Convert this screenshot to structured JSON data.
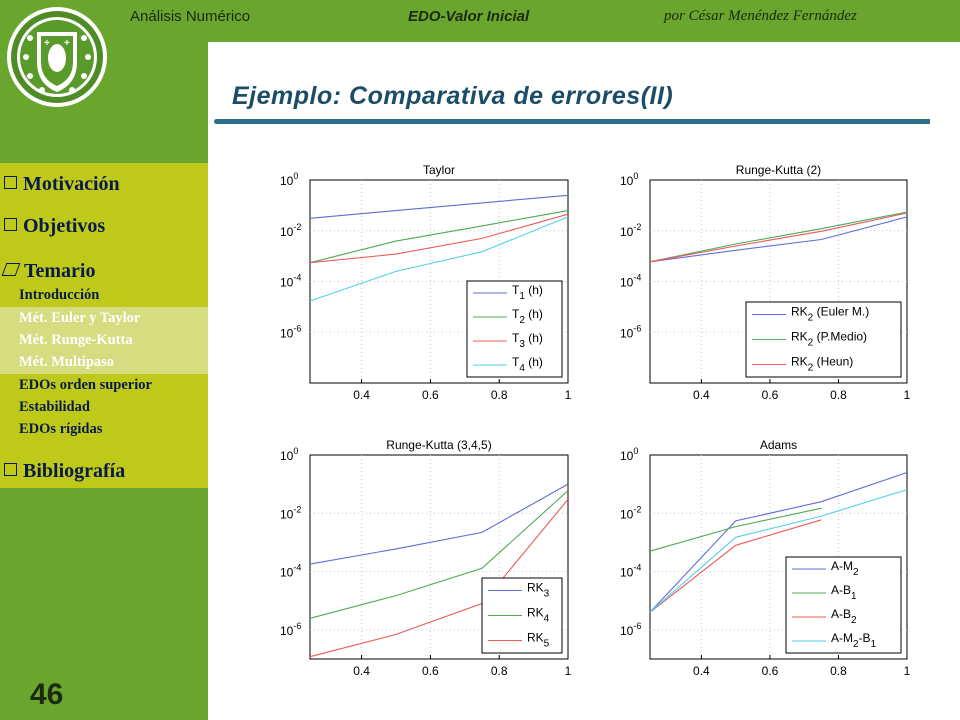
{
  "header": {
    "course": "Análisis Numérico",
    "topic": "EDO-Valor Inicial",
    "author": "por César Menéndez Fernández"
  },
  "slide": {
    "title": "Ejemplo: Comparativa de errores(II)",
    "page_number": "46"
  },
  "menu": {
    "items": [
      {
        "label": "Motivación"
      },
      {
        "label": "Objetivos"
      },
      {
        "label": "Temario"
      },
      {
        "label": "Bibliografía"
      }
    ],
    "subitems": [
      {
        "label": "Introducción",
        "active": false
      },
      {
        "label": "Mét. Euler y Taylor",
        "active": true
      },
      {
        "label": "Mét. Runge-Kutta",
        "active": true
      },
      {
        "label": "Mét. Multipaso",
        "active": true
      },
      {
        "label": "EDOs orden superior",
        "active": false
      },
      {
        "label": "Estabilidad",
        "active": false
      },
      {
        "label": "EDOs rígidas",
        "active": false
      }
    ]
  },
  "colors": {
    "sidebar": "#6aa52d",
    "menu": "#bfc91a",
    "title": "#1b4d66",
    "series_blue": "#5f6ed8",
    "series_green": "#4fa857",
    "series_red": "#ee5a5a",
    "series_cyan": "#52d2e6"
  },
  "chart_data": [
    {
      "type": "line",
      "title": "Taylor",
      "yscale": "log",
      "xlim": [
        0.25,
        1
      ],
      "ylim": [
        1e-08,
        1
      ],
      "xticks": [
        "0.4",
        "0.6",
        "0.8",
        "1"
      ],
      "yticks": [
        {
          "base": "10",
          "exp": "0"
        },
        {
          "base": "10",
          "exp": "-2"
        },
        {
          "base": "10",
          "exp": "-4"
        },
        {
          "base": "10",
          "exp": "-6"
        }
      ],
      "legend_position": "bottom-right",
      "series": [
        {
          "name": "T1 (h)",
          "label": {
            "main": "T",
            "sub": "1",
            "suffix": " (h)"
          },
          "color": "#5f6ed8",
          "x": [
            0.25,
            0.5,
            0.75,
            1
          ],
          "y": [
            0.031,
            0.062,
            0.125,
            0.25
          ]
        },
        {
          "name": "T2 (h)",
          "label": {
            "main": "T",
            "sub": "2",
            "suffix": " (h)"
          },
          "color": "#4fa857",
          "x": [
            0.25,
            0.5,
            0.75,
            1
          ],
          "y": [
            0.00055,
            0.0039,
            0.0155,
            0.062
          ]
        },
        {
          "name": "T3 (h)",
          "label": {
            "main": "T",
            "sub": "3",
            "suffix": " (h)"
          },
          "color": "#ee5a5a",
          "x": [
            0.25,
            0.5,
            0.75,
            1
          ],
          "y": [
            0.00055,
            0.0012,
            0.005,
            0.045
          ]
        },
        {
          "name": "T4 (h)",
          "label": {
            "main": "T",
            "sub": "4",
            "suffix": " (h)"
          },
          "color": "#52d2e6",
          "x": [
            0.25,
            0.5,
            0.75,
            1
          ],
          "y": [
            1.7e-05,
            0.00025,
            0.0015,
            0.035
          ]
        }
      ]
    },
    {
      "type": "line",
      "title": "Runge-Kutta (2)",
      "yscale": "log",
      "xlim": [
        0.25,
        1
      ],
      "ylim": [
        1e-08,
        1
      ],
      "xticks": [
        "0.4",
        "0.6",
        "0.8",
        "1"
      ],
      "yticks": [
        {
          "base": "10",
          "exp": "0"
        },
        {
          "base": "10",
          "exp": "-2"
        },
        {
          "base": "10",
          "exp": "-4"
        },
        {
          "base": "10",
          "exp": "-6"
        }
      ],
      "legend_position": "bottom-right",
      "series": [
        {
          "name": "RK2 (Euler M.)",
          "label": {
            "main": "RK",
            "sub": "2",
            "suffix": " (Euler M.)"
          },
          "color": "#5f6ed8",
          "x": [
            0.25,
            0.5,
            0.75,
            1
          ],
          "y": [
            0.0006,
            0.0017,
            0.0045,
            0.035
          ]
        },
        {
          "name": "RK2 (P.Medio)",
          "label": {
            "main": "RK",
            "sub": "2",
            "suffix": " (P.Medio)"
          },
          "color": "#4fa857",
          "x": [
            0.25,
            0.5,
            0.75,
            1
          ],
          "y": [
            0.0006,
            0.003,
            0.012,
            0.055
          ]
        },
        {
          "name": "RK2 (Heun)",
          "label": {
            "main": "RK",
            "sub": "2",
            "suffix": " (Heun)"
          },
          "color": "#ee5a5a",
          "x": [
            0.25,
            0.5,
            0.75,
            1
          ],
          "y": [
            0.0006,
            0.0025,
            0.0095,
            0.05
          ]
        }
      ]
    },
    {
      "type": "line",
      "title": "Runge-Kutta (3,4,5)",
      "yscale": "log",
      "xlim": [
        0.25,
        1
      ],
      "ylim": [
        1e-07,
        1
      ],
      "xticks": [
        "0.4",
        "0.6",
        "0.8",
        "1"
      ],
      "yticks": [
        {
          "base": "10",
          "exp": "0"
        },
        {
          "base": "10",
          "exp": "-2"
        },
        {
          "base": "10",
          "exp": "-4"
        },
        {
          "base": "10",
          "exp": "-6"
        }
      ],
      "legend_position": "bottom-right",
      "series": [
        {
          "name": "RK3",
          "label": {
            "main": "RK",
            "sub": "3",
            "suffix": ""
          },
          "color": "#5f6ed8",
          "x": [
            0.25,
            0.5,
            0.75,
            1
          ],
          "y": [
            0.00018,
            0.0006,
            0.0022,
            0.1
          ]
        },
        {
          "name": "RK4",
          "label": {
            "main": "RK",
            "sub": "4",
            "suffix": ""
          },
          "color": "#4fa857",
          "x": [
            0.25,
            0.5,
            0.75,
            1
          ],
          "y": [
            2.5e-06,
            1.5e-05,
            0.00013,
            0.06
          ]
        },
        {
          "name": "RK5",
          "label": {
            "main": "RK",
            "sub": "5",
            "suffix": ""
          },
          "color": "#ee5a5a",
          "x": [
            0.25,
            0.5,
            0.75,
            1
          ],
          "y": [
            1.2e-07,
            7e-07,
            8e-06,
            0.03
          ]
        }
      ]
    },
    {
      "type": "line",
      "title": "Adams",
      "yscale": "log",
      "xlim": [
        0.25,
        1
      ],
      "ylim": [
        1e-07,
        1
      ],
      "xticks": [
        "0.4",
        "0.6",
        "0.8",
        "1"
      ],
      "yticks": [
        {
          "base": "10",
          "exp": "0"
        },
        {
          "base": "10",
          "exp": "-2"
        },
        {
          "base": "10",
          "exp": "-4"
        },
        {
          "base": "10",
          "exp": "-6"
        }
      ],
      "legend_position": "bottom-right",
      "series": [
        {
          "name": "A-M2",
          "label": {
            "main": "A-M",
            "sub": "2",
            "suffix": ""
          },
          "color": "#5f6ed8",
          "x": [
            0.25,
            0.5,
            0.75,
            1
          ],
          "y": [
            4e-06,
            0.0055,
            0.025,
            0.25
          ]
        },
        {
          "name": "A-B1",
          "label": {
            "main": "A-B",
            "sub": "1",
            "suffix": ""
          },
          "color": "#4fa857",
          "x": [
            0.25,
            0.5,
            0.75
          ],
          "y": [
            0.0005,
            0.0035,
            0.015
          ]
        },
        {
          "name": "A-B2",
          "label": {
            "main": "A-B",
            "sub": "2",
            "suffix": ""
          },
          "color": "#ee5a5a",
          "x": [
            0.25,
            0.5,
            0.75
          ],
          "y": [
            4e-06,
            0.0008,
            0.006
          ]
        },
        {
          "name": "A-M2-B1",
          "label": {
            "main": "A-M",
            "sub": "2",
            "suffix": "-B",
            "sub2": "1"
          },
          "color": "#52d2e6",
          "x": [
            0.25,
            0.5,
            0.75,
            1
          ],
          "y": [
            4e-06,
            0.0015,
            0.008,
            0.065
          ]
        }
      ]
    }
  ]
}
